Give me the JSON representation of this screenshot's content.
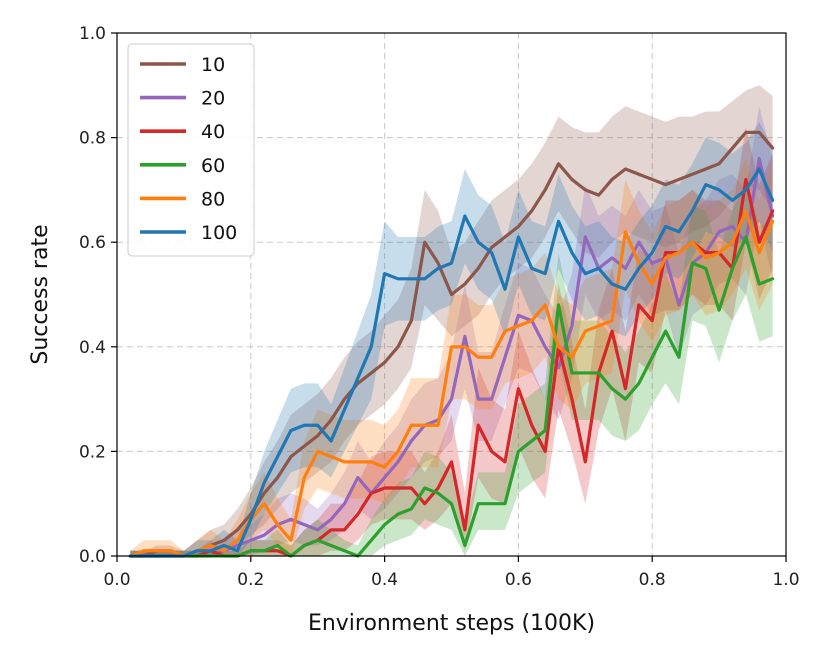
{
  "chart_data": {
    "type": "line",
    "xlabel": "Environment steps (100K)",
    "ylabel": "Success rate",
    "xlim": [
      0.0,
      1.0
    ],
    "ylim": [
      0.0,
      1.0
    ],
    "xticks": [
      "0.0",
      "0.2",
      "0.4",
      "0.6",
      "0.8",
      "1.0"
    ],
    "yticks": [
      "0.0",
      "0.2",
      "0.4",
      "0.6",
      "0.8",
      "1.0"
    ],
    "grid": true,
    "legend_position": "top-left",
    "x": [
      0.02,
      0.04,
      0.06,
      0.08,
      0.1,
      0.12,
      0.14,
      0.16,
      0.18,
      0.2,
      0.22,
      0.24,
      0.26,
      0.28,
      0.3,
      0.32,
      0.34,
      0.36,
      0.38,
      0.4,
      0.42,
      0.44,
      0.46,
      0.48,
      0.5,
      0.52,
      0.54,
      0.56,
      0.58,
      0.6,
      0.62,
      0.64,
      0.66,
      0.68,
      0.7,
      0.72,
      0.74,
      0.76,
      0.78,
      0.8,
      0.82,
      0.84,
      0.86,
      0.88,
      0.9,
      0.92,
      0.94,
      0.96,
      0.98
    ],
    "series": [
      {
        "name": "10",
        "color": "#8c564b",
        "values": [
          0,
          0,
          0.01,
          0.01,
          0,
          0.01,
          0.02,
          0.03,
          0.05,
          0.08,
          0.12,
          0.15,
          0.19,
          0.21,
          0.23,
          0.26,
          0.3,
          0.33,
          0.35,
          0.37,
          0.4,
          0.45,
          0.6,
          0.56,
          0.5,
          0.52,
          0.55,
          0.59,
          0.61,
          0.63,
          0.66,
          0.7,
          0.75,
          0.72,
          0.7,
          0.69,
          0.72,
          0.74,
          0.73,
          0.72,
          0.71,
          0.72,
          0.73,
          0.74,
          0.75,
          0.78,
          0.81,
          0.81,
          0.78
        ],
        "lower": [
          0,
          0,
          0,
          0,
          0,
          0,
          0,
          0.01,
          0.02,
          0.04,
          0.06,
          0.09,
          0.12,
          0.14,
          0.16,
          0.18,
          0.22,
          0.25,
          0.27,
          0.29,
          0.32,
          0.36,
          0.48,
          0.45,
          0.42,
          0.44,
          0.46,
          0.5,
          0.53,
          0.55,
          0.57,
          0.61,
          0.66,
          0.62,
          0.58,
          0.57,
          0.6,
          0.62,
          0.61,
          0.6,
          0.59,
          0.6,
          0.62,
          0.63,
          0.65,
          0.68,
          0.71,
          0.7,
          0.66
        ],
        "upper": [
          0.01,
          0.01,
          0.02,
          0.02,
          0.01,
          0.03,
          0.05,
          0.06,
          0.09,
          0.13,
          0.18,
          0.22,
          0.27,
          0.29,
          0.31,
          0.34,
          0.38,
          0.41,
          0.43,
          0.46,
          0.49,
          0.55,
          0.7,
          0.66,
          0.58,
          0.6,
          0.64,
          0.68,
          0.7,
          0.72,
          0.75,
          0.79,
          0.84,
          0.82,
          0.81,
          0.81,
          0.84,
          0.86,
          0.85,
          0.84,
          0.83,
          0.84,
          0.84,
          0.85,
          0.85,
          0.87,
          0.89,
          0.9,
          0.88
        ]
      },
      {
        "name": "20",
        "color": "#9467bd",
        "values": [
          0,
          0,
          0,
          0,
          0,
          0,
          0,
          0.01,
          0.02,
          0.03,
          0.04,
          0.06,
          0.07,
          0.06,
          0.05,
          0.07,
          0.1,
          0.15,
          0.12,
          0.15,
          0.18,
          0.22,
          0.25,
          0.26,
          0.3,
          0.42,
          0.3,
          0.3,
          0.38,
          0.46,
          0.45,
          0.4,
          0.36,
          0.44,
          0.61,
          0.55,
          0.57,
          0.55,
          0.6,
          0.56,
          0.57,
          0.48,
          0.56,
          0.58,
          0.62,
          0.63,
          0.6,
          0.76,
          0.65
        ],
        "lower": [
          0,
          0,
          0,
          0,
          0,
          0,
          0,
          0,
          0,
          0,
          0.01,
          0.02,
          0.03,
          0.02,
          0.02,
          0.03,
          0.05,
          0.09,
          0.07,
          0.09,
          0.12,
          0.15,
          0.18,
          0.19,
          0.22,
          0.32,
          0.22,
          0.22,
          0.29,
          0.36,
          0.35,
          0.3,
          0.26,
          0.34,
          0.5,
          0.45,
          0.47,
          0.45,
          0.5,
          0.46,
          0.47,
          0.38,
          0.46,
          0.48,
          0.52,
          0.53,
          0.5,
          0.64,
          0.53
        ],
        "upper": [
          0.01,
          0.01,
          0.01,
          0.01,
          0.01,
          0.01,
          0.01,
          0.03,
          0.05,
          0.06,
          0.08,
          0.11,
          0.12,
          0.11,
          0.09,
          0.12,
          0.16,
          0.22,
          0.18,
          0.22,
          0.25,
          0.3,
          0.33,
          0.34,
          0.39,
          0.52,
          0.39,
          0.39,
          0.48,
          0.56,
          0.55,
          0.5,
          0.46,
          0.54,
          0.71,
          0.65,
          0.67,
          0.65,
          0.7,
          0.66,
          0.67,
          0.58,
          0.66,
          0.68,
          0.72,
          0.73,
          0.7,
          0.86,
          0.76
        ]
      },
      {
        "name": "40",
        "color": "#d62728",
        "values": [
          0,
          0,
          0,
          0,
          0,
          0,
          0.01,
          0,
          0,
          0.01,
          0.01,
          0.01,
          0,
          0.02,
          0.03,
          0.05,
          0.05,
          0.08,
          0.12,
          0.13,
          0.13,
          0.13,
          0.1,
          0.13,
          0.18,
          0.05,
          0.25,
          0.2,
          0.18,
          0.32,
          0.25,
          0.2,
          0.4,
          0.3,
          0.18,
          0.35,
          0.43,
          0.32,
          0.48,
          0.45,
          0.58,
          0.58,
          0.6,
          0.58,
          0.58,
          0.55,
          0.72,
          0.6,
          0.66
        ],
        "lower": [
          0,
          0,
          0,
          0,
          0,
          0,
          0,
          0,
          0,
          0,
          0,
          0,
          0,
          0,
          0,
          0.01,
          0.01,
          0.03,
          0.06,
          0.07,
          0.07,
          0.07,
          0.05,
          0.07,
          0.1,
          0.01,
          0.15,
          0.11,
          0.1,
          0.21,
          0.15,
          0.11,
          0.28,
          0.2,
          0.1,
          0.24,
          0.32,
          0.22,
          0.37,
          0.35,
          0.47,
          0.47,
          0.5,
          0.48,
          0.48,
          0.45,
          0.6,
          0.49,
          0.55
        ],
        "upper": [
          0.01,
          0.01,
          0.01,
          0.01,
          0.01,
          0.01,
          0.03,
          0.01,
          0.01,
          0.03,
          0.03,
          0.03,
          0.02,
          0.05,
          0.07,
          0.1,
          0.1,
          0.14,
          0.19,
          0.2,
          0.2,
          0.2,
          0.16,
          0.2,
          0.27,
          0.12,
          0.36,
          0.3,
          0.28,
          0.43,
          0.36,
          0.3,
          0.52,
          0.41,
          0.28,
          0.47,
          0.55,
          0.43,
          0.59,
          0.56,
          0.68,
          0.68,
          0.7,
          0.68,
          0.68,
          0.66,
          0.82,
          0.71,
          0.77
        ]
      },
      {
        "name": "60",
        "color": "#2ca02c",
        "values": [
          0,
          0,
          0,
          0,
          0,
          0,
          0,
          0,
          0,
          0.01,
          0.01,
          0.02,
          0,
          0.02,
          0.03,
          0.02,
          0.01,
          0,
          0.03,
          0.06,
          0.08,
          0.09,
          0.13,
          0.12,
          0.1,
          0.02,
          0.1,
          0.1,
          0.1,
          0.2,
          0.22,
          0.24,
          0.48,
          0.35,
          0.35,
          0.35,
          0.32,
          0.3,
          0.33,
          0.38,
          0.43,
          0.38,
          0.56,
          0.55,
          0.47,
          0.55,
          0.61,
          0.52,
          0.53
        ],
        "lower": [
          0,
          0,
          0,
          0,
          0,
          0,
          0,
          0,
          0,
          0,
          0,
          0,
          0,
          0,
          0,
          0,
          0,
          0,
          0,
          0.02,
          0.03,
          0.04,
          0.07,
          0.06,
          0.05,
          0,
          0.05,
          0.05,
          0.05,
          0.12,
          0.14,
          0.16,
          0.38,
          0.26,
          0.26,
          0.26,
          0.23,
          0.22,
          0.24,
          0.29,
          0.33,
          0.29,
          0.45,
          0.44,
          0.37,
          0.45,
          0.5,
          0.41,
          0.42
        ],
        "upper": [
          0.01,
          0.01,
          0.01,
          0.01,
          0.01,
          0.01,
          0.01,
          0.01,
          0.01,
          0.03,
          0.03,
          0.05,
          0.02,
          0.05,
          0.07,
          0.05,
          0.03,
          0.02,
          0.07,
          0.11,
          0.14,
          0.15,
          0.2,
          0.19,
          0.16,
          0.06,
          0.16,
          0.16,
          0.16,
          0.29,
          0.31,
          0.33,
          0.58,
          0.45,
          0.45,
          0.45,
          0.42,
          0.39,
          0.43,
          0.48,
          0.54,
          0.48,
          0.67,
          0.66,
          0.58,
          0.66,
          0.72,
          0.63,
          0.64
        ]
      },
      {
        "name": "80",
        "color": "#ff7f0e",
        "values": [
          0,
          0.01,
          0.01,
          0.01,
          0,
          0.01,
          0.02,
          0.01,
          0.03,
          0.07,
          0.1,
          0.06,
          0.03,
          0.15,
          0.2,
          0.19,
          0.18,
          0.18,
          0.18,
          0.17,
          0.2,
          0.25,
          0.25,
          0.25,
          0.4,
          0.4,
          0.38,
          0.38,
          0.43,
          0.44,
          0.45,
          0.48,
          0.4,
          0.38,
          0.43,
          0.44,
          0.45,
          0.62,
          0.56,
          0.52,
          0.57,
          0.58,
          0.6,
          0.57,
          0.58,
          0.6,
          0.66,
          0.58,
          0.64
        ],
        "lower": [
          0,
          0,
          0,
          0,
          0,
          0,
          0,
          0,
          0,
          0.03,
          0.05,
          0.02,
          0,
          0.09,
          0.13,
          0.12,
          0.11,
          0.11,
          0.11,
          0.1,
          0.13,
          0.17,
          0.17,
          0.17,
          0.3,
          0.3,
          0.28,
          0.28,
          0.33,
          0.34,
          0.35,
          0.38,
          0.3,
          0.28,
          0.33,
          0.34,
          0.35,
          0.51,
          0.45,
          0.41,
          0.46,
          0.47,
          0.5,
          0.46,
          0.47,
          0.5,
          0.55,
          0.47,
          0.52
        ],
        "upper": [
          0.01,
          0.03,
          0.03,
          0.03,
          0.01,
          0.03,
          0.05,
          0.03,
          0.07,
          0.12,
          0.16,
          0.11,
          0.07,
          0.22,
          0.28,
          0.27,
          0.26,
          0.26,
          0.26,
          0.25,
          0.28,
          0.34,
          0.34,
          0.34,
          0.5,
          0.5,
          0.48,
          0.48,
          0.53,
          0.54,
          0.55,
          0.58,
          0.5,
          0.48,
          0.53,
          0.54,
          0.55,
          0.72,
          0.66,
          0.62,
          0.67,
          0.68,
          0.7,
          0.67,
          0.68,
          0.7,
          0.76,
          0.68,
          0.76
        ]
      },
      {
        "name": "100",
        "color": "#1f77b4",
        "values": [
          0,
          0,
          0,
          0,
          0,
          0.01,
          0.01,
          0.02,
          0.01,
          0.07,
          0.14,
          0.19,
          0.24,
          0.25,
          0.25,
          0.22,
          0.28,
          0.34,
          0.4,
          0.54,
          0.53,
          0.53,
          0.53,
          0.55,
          0.56,
          0.65,
          0.6,
          0.58,
          0.51,
          0.61,
          0.55,
          0.54,
          0.64,
          0.58,
          0.54,
          0.55,
          0.52,
          0.51,
          0.55,
          0.58,
          0.63,
          0.62,
          0.66,
          0.71,
          0.7,
          0.68,
          0.7,
          0.74,
          0.68
        ],
        "lower": [
          0,
          0,
          0,
          0,
          0,
          0,
          0,
          0,
          0,
          0.03,
          0.08,
          0.12,
          0.16,
          0.17,
          0.17,
          0.15,
          0.2,
          0.25,
          0.3,
          0.44,
          0.45,
          0.45,
          0.45,
          0.47,
          0.48,
          0.56,
          0.51,
          0.49,
          0.42,
          0.52,
          0.46,
          0.45,
          0.55,
          0.49,
          0.45,
          0.46,
          0.43,
          0.42,
          0.46,
          0.49,
          0.54,
          0.53,
          0.57,
          0.62,
          0.61,
          0.59,
          0.61,
          0.64,
          0.58
        ],
        "upper": [
          0.01,
          0.01,
          0.01,
          0.01,
          0.01,
          0.03,
          0.03,
          0.05,
          0.03,
          0.12,
          0.2,
          0.26,
          0.32,
          0.33,
          0.33,
          0.29,
          0.36,
          0.43,
          0.5,
          0.64,
          0.61,
          0.61,
          0.61,
          0.63,
          0.64,
          0.74,
          0.69,
          0.67,
          0.6,
          0.7,
          0.64,
          0.63,
          0.73,
          0.67,
          0.63,
          0.64,
          0.61,
          0.6,
          0.64,
          0.67,
          0.72,
          0.71,
          0.75,
          0.8,
          0.79,
          0.77,
          0.79,
          0.83,
          0.78
        ]
      }
    ]
  }
}
